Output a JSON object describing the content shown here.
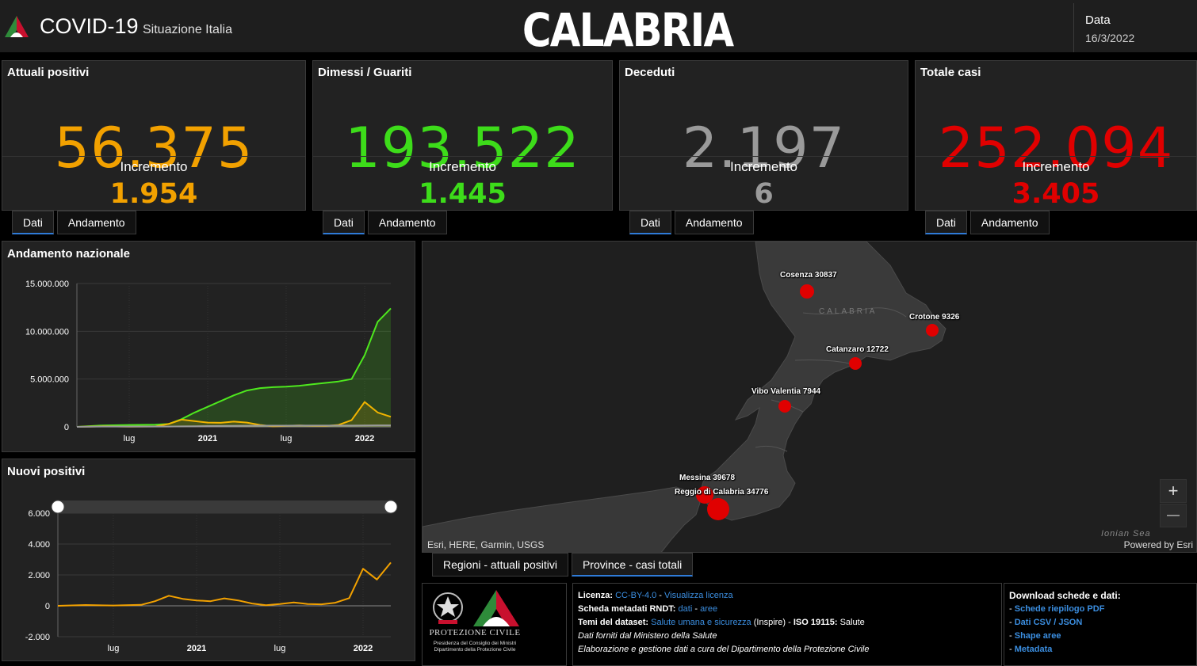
{
  "header": {
    "title": "COVID-19",
    "subtitle": "Situazione Italia",
    "region": "CALABRIA",
    "date_label": "Data",
    "date_value": "16/3/2022"
  },
  "cards": [
    {
      "title": "Attuali positivi",
      "value": "56.375",
      "inc_label": "Incremento",
      "inc_value": "1.954",
      "color": "#f2a100"
    },
    {
      "title": "Dimessi / Guariti",
      "value": "193.522",
      "inc_label": "Incremento",
      "inc_value": "1.445",
      "color": "#3ddc1a"
    },
    {
      "title": "Deceduti",
      "value": "2.197",
      "inc_label": "Incremento",
      "inc_value": "6",
      "color": "#9a9a9a"
    },
    {
      "title": "Totale casi",
      "value": "252.094",
      "inc_label": "Incremento",
      "inc_value": "3.405",
      "color": "#e00000"
    }
  ],
  "card_tabs": {
    "dati": "Dati",
    "andamento": "Andamento"
  },
  "charts": {
    "andamento": {
      "title": "Andamento nazionale",
      "y_ticks": [
        "15.000.000",
        "10.000.000",
        "5.000.000",
        "0"
      ],
      "x_ticks": [
        "lug",
        "2021",
        "lug",
        "2022"
      ]
    },
    "nuovi": {
      "title": "Nuovi positivi",
      "y_ticks": [
        "6.000",
        "4.000",
        "2.000",
        "0",
        "-2.000"
      ],
      "x_ticks": [
        "lug",
        "2021",
        "lug",
        "2022"
      ]
    }
  },
  "chart_data": [
    {
      "type": "area",
      "title": "Andamento nazionale",
      "x": [
        "2020-03",
        "2020-05",
        "2020-07",
        "2020-09",
        "2020-10",
        "2020-11",
        "2020-12",
        "2021-01",
        "2021-02",
        "2021-03",
        "2021-04",
        "2021-05",
        "2021-06",
        "2021-07",
        "2021-08",
        "2021-09",
        "2021-10",
        "2021-11",
        "2021-12",
        "2022-01",
        "2022-02",
        "2022-03"
      ],
      "series": [
        {
          "name": "Dimessi / Guariti",
          "color": "#4ee81e",
          "values": [
            0,
            150000,
            200000,
            220000,
            300000,
            800000,
            1500000,
            2100000,
            2700000,
            3300000,
            3800000,
            4050000,
            4150000,
            4200000,
            4300000,
            4450000,
            4600000,
            4750000,
            5000000,
            7500000,
            11000000,
            12400000
          ]
        },
        {
          "name": "Attuali positivi",
          "color": "#f2b400",
          "values": [
            0,
            60000,
            15000,
            40000,
            300000,
            750000,
            600000,
            450000,
            420000,
            550000,
            450000,
            200000,
            50000,
            100000,
            140000,
            110000,
            90000,
            200000,
            700000,
            2600000,
            1500000,
            1050000
          ]
        },
        {
          "name": "Deceduti",
          "color": "#9a9a9a",
          "values": [
            0,
            30000,
            35000,
            35000,
            37000,
            50000,
            70000,
            80000,
            95000,
            105000,
            115000,
            125000,
            127000,
            128000,
            129000,
            130000,
            131000,
            133000,
            136000,
            145000,
            155000,
            158000
          ]
        }
      ],
      "ylim": [
        0,
        15000000
      ]
    },
    {
      "type": "line",
      "title": "Nuovi positivi",
      "x": [
        "2020-03",
        "2020-05",
        "2020-07",
        "2020-09",
        "2020-10",
        "2020-11",
        "2020-12",
        "2021-01",
        "2021-02",
        "2021-03",
        "2021-04",
        "2021-05",
        "2021-06",
        "2021-07",
        "2021-08",
        "2021-09",
        "2021-10",
        "2021-11",
        "2021-12",
        "2022-01",
        "2022-02",
        "2022-03"
      ],
      "series": [
        {
          "name": "Nuovi positivi",
          "color": "#f2a100",
          "values": [
            0,
            50,
            20,
            60,
            300,
            650,
            450,
            350,
            300,
            480,
            350,
            150,
            40,
            120,
            220,
            120,
            100,
            200,
            500,
            2400,
            1700,
            2800
          ]
        }
      ],
      "ylim": [
        -2000,
        6000
      ]
    }
  ],
  "map": {
    "attribution": "Esri, HERE, Garmin, USGS",
    "powered": "Powered by Esri",
    "sea": "Ionian Sea",
    "region_label": "CALABRIA",
    "zoom_in": "+",
    "zoom_out": "—",
    "provinces": [
      {
        "label": "Cosenza 30837",
        "cases": 30837
      },
      {
        "label": "Crotone 9326",
        "cases": 9326
      },
      {
        "label": "Catanzaro 12722",
        "cases": 12722
      },
      {
        "label": "Vibo Valentia 7944",
        "cases": 7944
      },
      {
        "label": "Messina 39678",
        "cases": 39678
      },
      {
        "label": "Reggio di Calabria 34776",
        "cases": 34776
      }
    ]
  },
  "map_tabs": {
    "regioni": "Regioni - attuali positivi",
    "province": "Province - casi totali"
  },
  "footer": {
    "logo_line1": "PROTEZIONE CIVILE",
    "logo_line2": "Presidenza del Consiglio dei Ministri",
    "logo_line3": "Dipartimento della Protezione Civile",
    "licenza_label": "Licenza:",
    "licenza_value": "CC-BY-4.0",
    "licenza_sep": " - ",
    "licenza_link": "Visualizza licenza",
    "meta_label": "Scheda metadati RNDT:",
    "meta_link1": "dati",
    "meta_sep": " - ",
    "meta_link2": "aree",
    "temi_label": "Temi del dataset:",
    "temi_link": "Salute umana e sicurezza",
    "temi_rest": " (Inspire) - ",
    "iso_label": "ISO 19115:",
    "iso_value": " Salute",
    "dati_forniti": "Dati forniti dal Ministero della Salute",
    "elaborazione": "Elaborazione e gestione dati a cura del Dipartimento della Protezione Civile",
    "download_title": "Download schede e dati:",
    "download_items": [
      "Schede riepilogo PDF",
      "Dati CSV / JSON",
      "Shape aree",
      "Metadata"
    ]
  }
}
